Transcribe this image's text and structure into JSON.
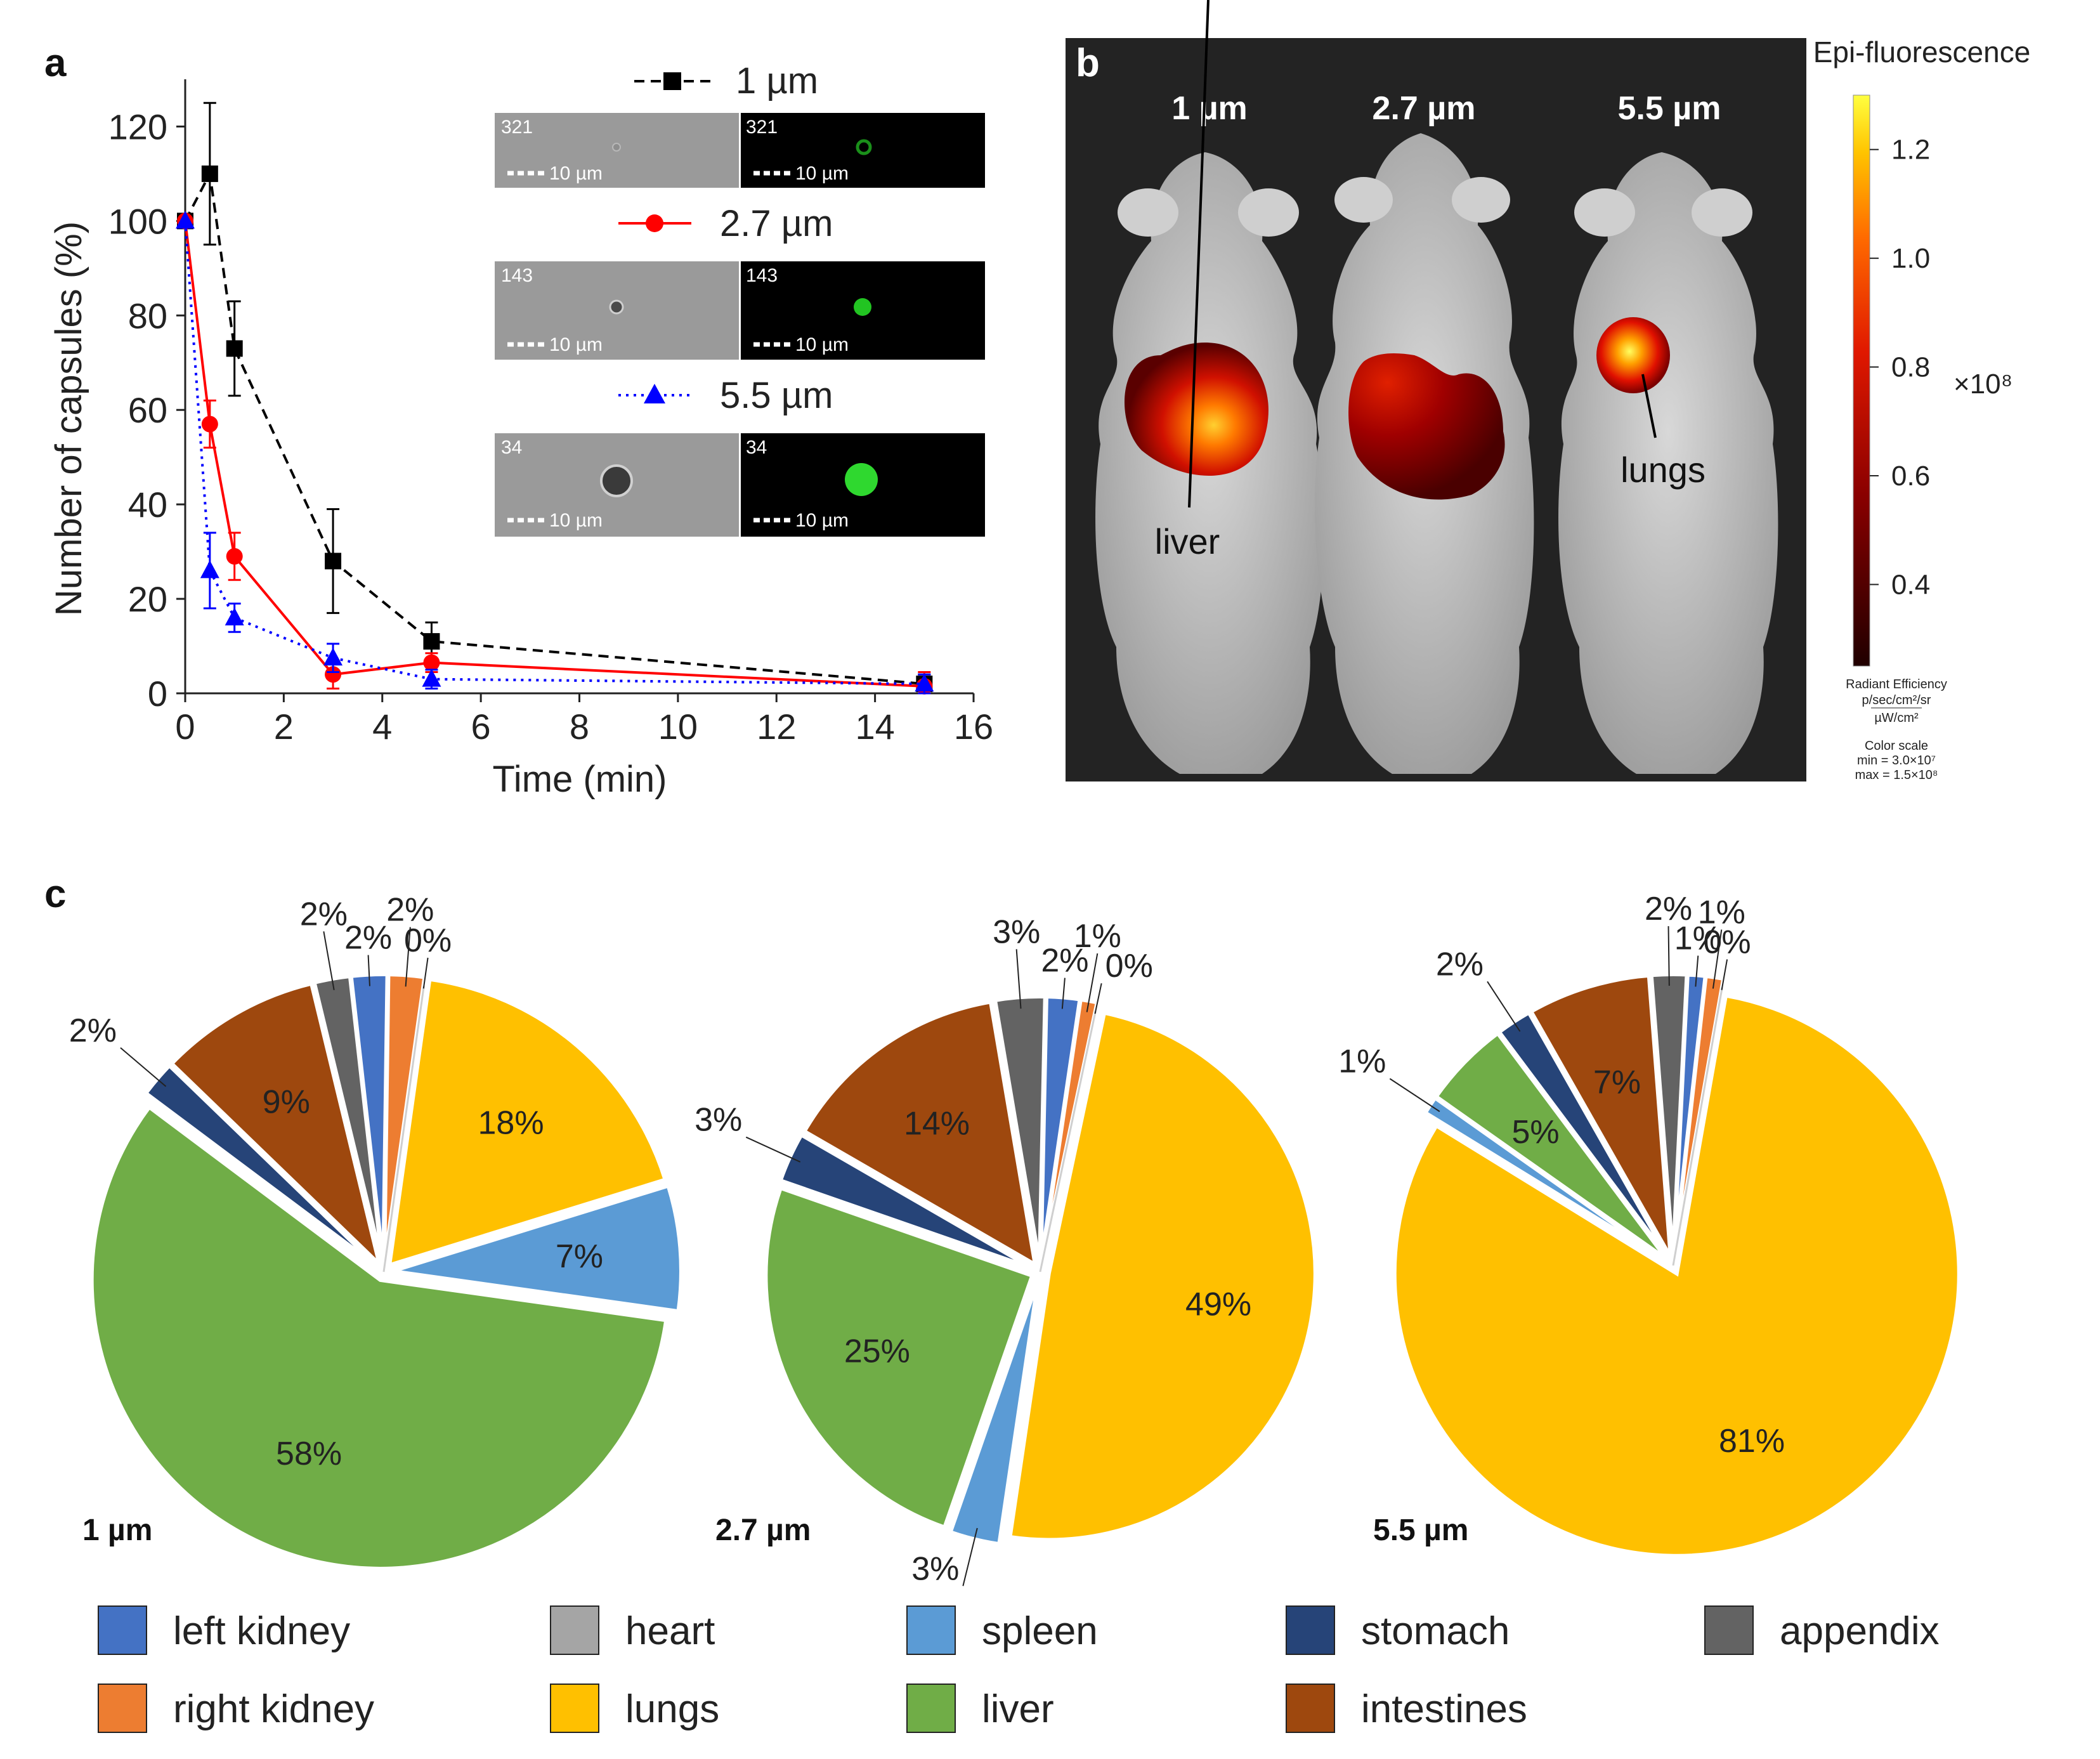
{
  "panels": {
    "a": "a",
    "b": "b",
    "c": "c"
  },
  "chart_data": [
    {
      "type": "line",
      "panel": "a",
      "xlabel": "Time (min)",
      "ylabel": "Number of capsules (%)",
      "xlim": [
        0,
        16
      ],
      "ylim": [
        0,
        130
      ],
      "xticks": [
        "0",
        "2",
        "4",
        "6",
        "8",
        "10",
        "12",
        "14",
        "16"
      ],
      "yticks": [
        "0",
        "20",
        "40",
        "60",
        "80",
        "100",
        "120"
      ],
      "series": [
        {
          "name": "1 µm",
          "color": "#000000",
          "marker": "square",
          "dash": "dashed",
          "x": [
            0,
            0.5,
            1,
            3,
            5,
            15
          ],
          "y": [
            100,
            110,
            73,
            28,
            11,
            2
          ],
          "err": [
            0,
            15,
            10,
            11,
            4,
            2
          ]
        },
        {
          "name": "2.7 µm",
          "color": "#ff0000",
          "marker": "circle",
          "dash": "solid",
          "x": [
            0,
            0.5,
            1,
            3,
            5,
            15
          ],
          "y": [
            100,
            57,
            29,
            4,
            6.5,
            1.5
          ],
          "err": [
            0,
            5,
            5,
            3,
            2,
            3
          ]
        },
        {
          "name": "5.5 µm",
          "color": "#0000ff",
          "marker": "triangle",
          "dash": "dotted",
          "x": [
            0,
            0.5,
            1,
            3,
            5,
            15
          ],
          "y": [
            100,
            26,
            16,
            7.5,
            3,
            2
          ],
          "err": [
            0,
            8,
            3,
            3,
            2,
            2
          ]
        }
      ],
      "insets": [
        {
          "count": "321",
          "scale": "10 µm"
        },
        {
          "count": "143",
          "scale": "10 µm"
        },
        {
          "count": "34",
          "scale": "10 µm"
        }
      ]
    },
    {
      "type": "pie",
      "panel": "c",
      "title": "1 µm",
      "categories": [
        "lungs",
        "spleen",
        "liver",
        "stomach",
        "intestines",
        "appendix",
        "left kidney",
        "right kidney",
        "heart"
      ],
      "values": [
        18,
        7,
        58,
        2,
        9,
        2,
        2,
        2,
        0
      ],
      "labels": [
        "18%",
        "7%",
        "58%",
        "2%",
        "9%",
        "2%",
        "2%",
        "2%",
        "0%"
      ]
    },
    {
      "type": "pie",
      "panel": "c",
      "title": "2.7 µm",
      "categories": [
        "lungs",
        "spleen",
        "liver",
        "stomach",
        "intestines",
        "appendix",
        "left kidney",
        "right kidney",
        "heart"
      ],
      "values": [
        49,
        3,
        25,
        3,
        14,
        3,
        2,
        1,
        0
      ],
      "labels": [
        "49%",
        "3%",
        "25%",
        "3%",
        "14%",
        "3%",
        "2%",
        "1%",
        "0%"
      ]
    },
    {
      "type": "pie",
      "panel": "c",
      "title": "5.5 µm",
      "categories": [
        "lungs",
        "spleen",
        "liver",
        "stomach",
        "intestines",
        "appendix",
        "left kidney",
        "right kidney",
        "heart"
      ],
      "values": [
        81,
        1,
        5,
        2,
        7,
        2,
        1,
        1,
        0
      ],
      "labels": [
        "81%",
        "1%",
        "5%",
        "2%",
        "7%",
        "2%",
        "1%",
        "1%",
        "0%"
      ]
    }
  ],
  "imaging": {
    "mice_labels": [
      "1 µm",
      "2.7 µm",
      "5.5 µm"
    ],
    "organ_labels": [
      "liver",
      "lungs"
    ],
    "colorbar": {
      "title": "Epi-fluorescence",
      "ticks": [
        "1.2",
        "1.0",
        "0.8",
        "0.6",
        "0.4"
      ],
      "tick_values": [
        1.2,
        1.0,
        0.8,
        0.6,
        0.4
      ],
      "range": [
        0.25,
        1.3
      ],
      "multiplier": "×10⁸",
      "unit_title": "Radiant Efficiency",
      "unit_num": "p/sec/cm²/sr",
      "unit_den": "µW/cm²",
      "scale_title": "Color scale",
      "scale_min": "min = 3.0×10⁷",
      "scale_max": "max = 1.5×10⁸"
    }
  },
  "organ_colors": {
    "left kidney": "#4472c4",
    "right kidney": "#ed7d31",
    "heart": "#a5a5a5",
    "lungs": "#ffc000",
    "spleen": "#5b9bd5",
    "liver": "#70ad47",
    "stomach": "#264478",
    "intestines": "#9e480e",
    "appendix": "#636363"
  },
  "legend": [
    "left kidney",
    "heart",
    "spleen",
    "stomach",
    "appendix",
    "right kidney",
    "lungs",
    "liver",
    "intestines"
  ]
}
